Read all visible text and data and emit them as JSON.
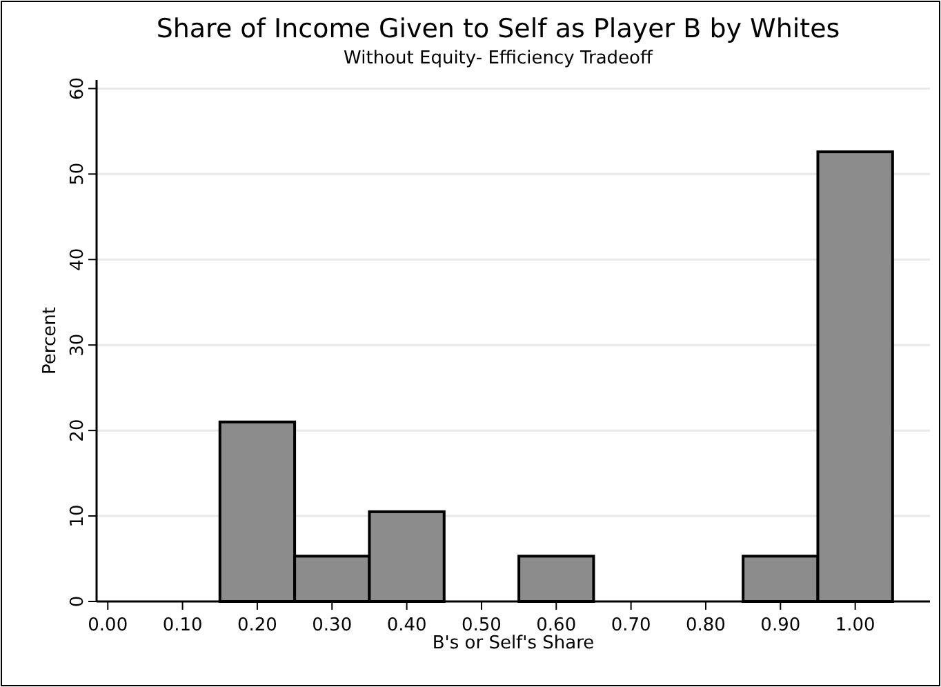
{
  "chart_data": {
    "type": "histogram",
    "title": "Share of Income Given to Self as Player B by Whites",
    "subtitle": "Without Equity- Efficiency Tradeoff",
    "xlabel": "B's or Self's Share",
    "ylabel": "Percent",
    "bins": [
      0.15,
      0.25,
      0.35,
      0.45,
      0.55,
      0.65,
      0.75,
      0.85,
      0.95,
      1.05
    ],
    "values": [
      21,
      5.3,
      10.5,
      0,
      5.3,
      0,
      0,
      5.3,
      52.6
    ],
    "color": "#8c8c8c",
    "xlim": [
      -0.015,
      1.1
    ],
    "ylim": [
      0,
      61
    ],
    "xticks": [
      {
        "value": 0,
        "label": "0.00"
      },
      {
        "value": 0.1,
        "label": "0.10"
      },
      {
        "value": 0.2,
        "label": "0.20"
      },
      {
        "value": 0.3,
        "label": "0.30"
      },
      {
        "value": 0.4,
        "label": "0.40"
      },
      {
        "value": 0.5,
        "label": "0.50"
      },
      {
        "value": 0.6,
        "label": "0.60"
      },
      {
        "value": 0.7,
        "label": "0.70"
      },
      {
        "value": 0.8,
        "label": "0.80"
      },
      {
        "value": 0.9,
        "label": "0.90"
      },
      {
        "value": 1,
        "label": "1.00"
      }
    ],
    "yticks": [
      0,
      10,
      20,
      30,
      40,
      50,
      60
    ],
    "grid": "y"
  }
}
